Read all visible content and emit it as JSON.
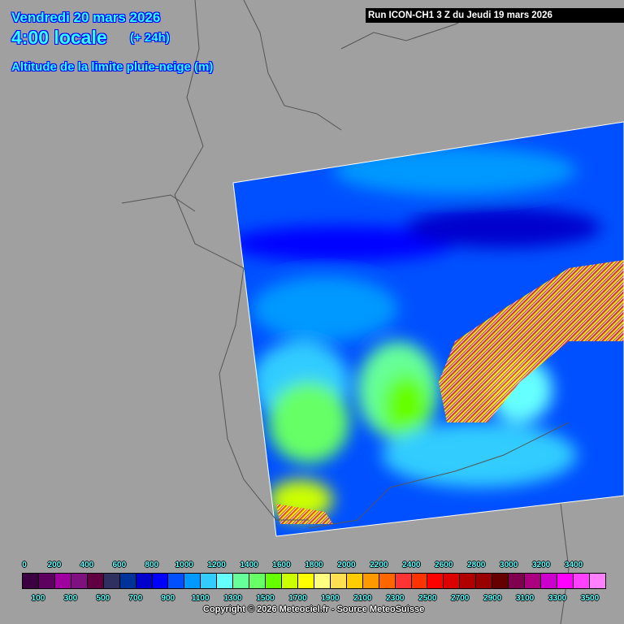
{
  "header": {
    "date": "Vendredi 20 mars 2026",
    "local_time": "4:00 locale",
    "lead_time": "(+ 24h)",
    "parameter": "Altitude de la limite pluie-neige (m)",
    "run": "Run ICON-CH1 3 Z du Jeudi 19 mars 2026"
  },
  "legend": {
    "unit": "m",
    "top_labels": [
      "0",
      "200",
      "400",
      "600",
      "800",
      "1000",
      "1200",
      "1400",
      "1600",
      "1800",
      "2000",
      "2200",
      "2400",
      "2600",
      "2800",
      "3000",
      "3200",
      "3400"
    ],
    "bottom_labels": [
      "100",
      "300",
      "500",
      "700",
      "900",
      "1100",
      "1300",
      "1500",
      "1700",
      "1900",
      "2100",
      "2300",
      "2500",
      "2700",
      "2900",
      "3100",
      "3300",
      "3500"
    ],
    "colors": [
      "#3a0040",
      "#5e0060",
      "#a000a0",
      "#7f1080",
      "#600040",
      "#303060",
      "#003399",
      "#0000cc",
      "#0000ff",
      "#0050ff",
      "#0099ff",
      "#33ccff",
      "#66ffff",
      "#66ff99",
      "#66ff66",
      "#66ff00",
      "#ccff00",
      "#ffff00",
      "#ffff80",
      "#ffe050",
      "#ffcc00",
      "#ff9900",
      "#ff6600",
      "#ff3333",
      "#ff3300",
      "#ff0000",
      "#dd0000",
      "#b00000",
      "#990000",
      "#660000",
      "#800050",
      "#aa0080",
      "#cc00cc",
      "#ff00ff",
      "#ff40ff",
      "#ff80ff"
    ]
  },
  "map": {
    "background": "#a0a0a0",
    "border_color": "#555555"
  },
  "footer": {
    "copyright": "Copyright © 2026 Meteociel.fr - Source MeteoSuisse"
  }
}
